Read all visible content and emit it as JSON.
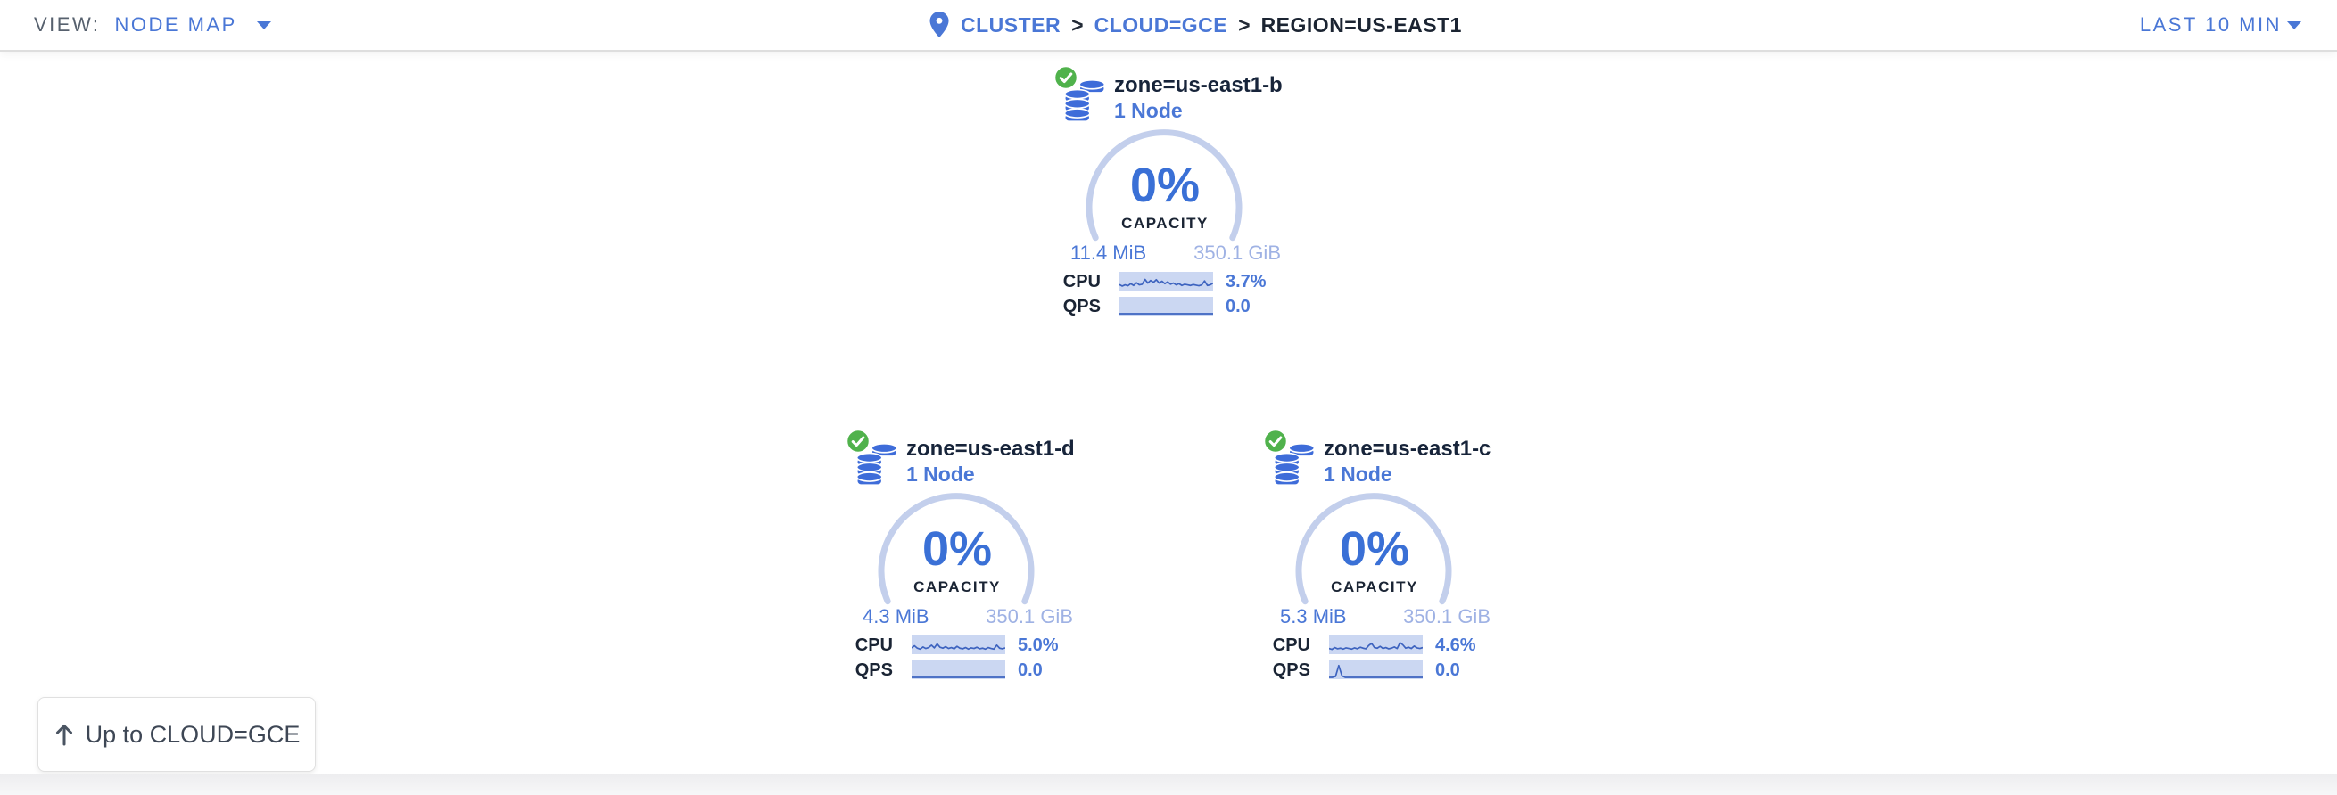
{
  "topbar": {
    "view_label": "VIEW:",
    "view_value": "NODE MAP",
    "separator": ">",
    "breadcrumb": [
      {
        "label": "CLUSTER"
      },
      {
        "label": "CLOUD=GCE"
      },
      {
        "label": "REGION=US-EAST1"
      }
    ],
    "time_range": "LAST 10 MIN"
  },
  "zones": [
    {
      "title": "zone=us-east1-b",
      "subtitle": "1 Node",
      "capacity_pct": "0%",
      "capacity_label": "CAPACITY",
      "used": "11.4 MiB",
      "total": "350.1 GiB",
      "cpu_label": "CPU",
      "cpu_value": "3.7%",
      "qps_label": "QPS",
      "qps_value": "0.0",
      "cpu_spark": [
        0.28,
        0.18,
        0.26,
        0.2,
        0.34,
        0.22,
        0.4,
        0.26,
        0.3,
        0.62,
        0.38,
        0.55,
        0.42,
        0.6,
        0.38,
        0.5,
        0.34,
        0.46,
        0.3,
        0.38,
        0.26,
        0.34,
        0.22,
        0.3,
        0.26,
        0.22,
        0.28,
        0.24,
        0.2,
        0.26,
        0.52,
        0.22,
        0.26,
        0.38
      ],
      "qps_spark": [
        0,
        0,
        0,
        0,
        0,
        0,
        0,
        0,
        0,
        0,
        0,
        0,
        0,
        0,
        0,
        0,
        0,
        0,
        0,
        0,
        0,
        0,
        0,
        0,
        0,
        0,
        0,
        0,
        0,
        0
      ]
    },
    {
      "title": "zone=us-east1-d",
      "subtitle": "1 Node",
      "capacity_pct": "0%",
      "capacity_label": "CAPACITY",
      "used": "4.3 MiB",
      "total": "350.1 GiB",
      "cpu_label": "CPU",
      "cpu_value": "5.0%",
      "qps_label": "QPS",
      "qps_value": "0.0",
      "cpu_spark": [
        0.3,
        0.44,
        0.28,
        0.22,
        0.36,
        0.26,
        0.32,
        0.48,
        0.3,
        0.56,
        0.34,
        0.28,
        0.38,
        0.26,
        0.32,
        0.24,
        0.4,
        0.28,
        0.24,
        0.32,
        0.22,
        0.3,
        0.26,
        0.34,
        0.24,
        0.28,
        0.22,
        0.32,
        0.26,
        0.22,
        0.48,
        0.28,
        0.24,
        0.3
      ],
      "qps_spark": [
        0,
        0,
        0,
        0,
        0,
        0,
        0,
        0,
        0,
        0,
        0,
        0,
        0,
        0,
        0,
        0,
        0,
        0,
        0,
        0,
        0,
        0,
        0,
        0,
        0,
        0,
        0,
        0,
        0,
        0
      ]
    },
    {
      "title": "zone=us-east1-c",
      "subtitle": "1 Node",
      "capacity_pct": "0%",
      "capacity_label": "CAPACITY",
      "used": "5.3 MiB",
      "total": "350.1 GiB",
      "cpu_label": "CPU",
      "cpu_value": "4.6%",
      "qps_label": "QPS",
      "qps_value": "0.0",
      "cpu_spark": [
        0.26,
        0.2,
        0.32,
        0.24,
        0.28,
        0.22,
        0.3,
        0.26,
        0.22,
        0.3,
        0.24,
        0.34,
        0.28,
        0.24,
        0.46,
        0.6,
        0.32,
        0.28,
        0.4,
        0.26,
        0.32,
        0.24,
        0.28,
        0.36,
        0.26,
        0.64,
        0.5,
        0.28,
        0.34,
        0.26,
        0.42,
        0.3,
        0.26,
        0.32
      ],
      "qps_spark": [
        0,
        0,
        0.06,
        0.78,
        0.1,
        0,
        0,
        0,
        0,
        0,
        0,
        0,
        0,
        0,
        0,
        0,
        0,
        0,
        0,
        0,
        0,
        0,
        0,
        0,
        0,
        0,
        0,
        0,
        0,
        0
      ]
    }
  ],
  "up_button": {
    "label": "Up to CLOUD=GCE"
  },
  "colors": {
    "link_blue": "#4a77d6",
    "dark_text": "#17243a",
    "muted_gray": "#57616e",
    "gauge_pct_blue": "#3a70d6",
    "capacity_total_blue": "#9fb2e4",
    "arc_blue": "#c3cfec",
    "spark_bg": "#cbd7f2",
    "spark_line": "#3d63bf",
    "ok_green": "#50b24c",
    "db_icon_blue": "#3e6cd9"
  }
}
